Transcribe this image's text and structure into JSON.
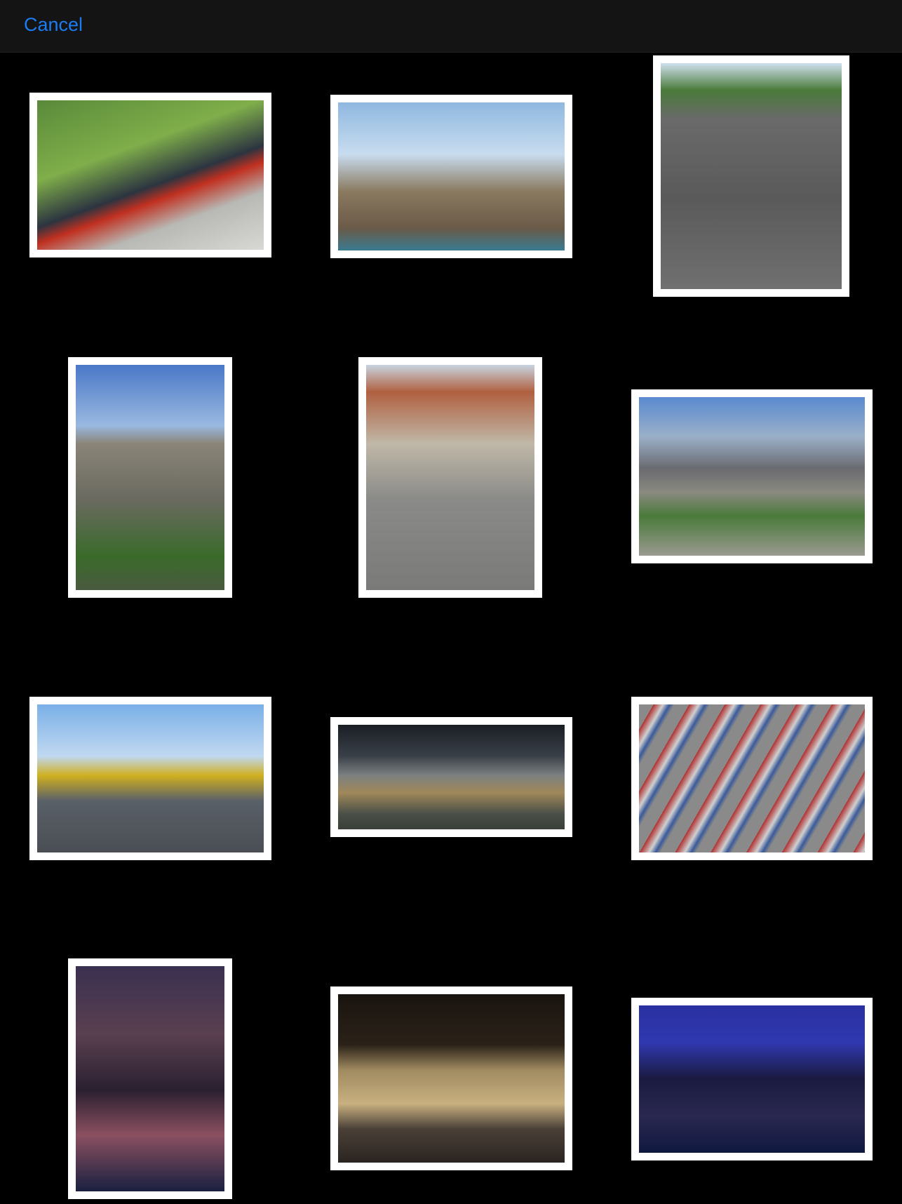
{
  "header": {
    "cancel": "Cancel"
  }
}
